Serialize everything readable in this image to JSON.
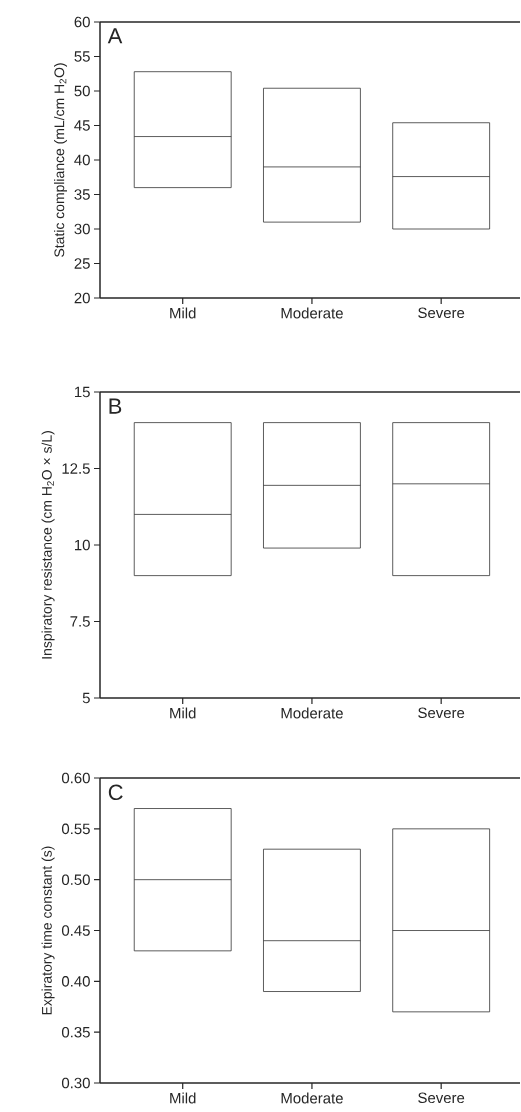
{
  "chart_data": [
    {
      "type": "box",
      "ylabel": "Static compliance (mL/cm H$_{2}$O)",
      "annotations": [
        "A"
      ],
      "categories": [
        "Mild",
        "Moderate",
        "Severe"
      ],
      "color": "#333333",
      "boxes": [
        {
          "low": 36,
          "q1": 36,
          "median": 43.4,
          "q3": 52.8,
          "high": 52.8
        },
        {
          "low": 31,
          "q1": 31,
          "median": 39,
          "q3": 50.4,
          "high": 50.4
        },
        {
          "low": 30,
          "q1": 30,
          "median": 37.6,
          "q3": 45.4,
          "high": 45.4
        }
      ],
      "ylim": [
        20,
        60
      ],
      "yticks": [
        20,
        25,
        30,
        35,
        40,
        45,
        50,
        55,
        60
      ]
    },
    {
      "type": "box",
      "ylabel": "Inspiratory resistance (cm H$_{2}$O × s/L)",
      "annotations": [
        "B"
      ],
      "categories": [
        "Mild",
        "Moderate",
        "Severe"
      ],
      "color": "#333333",
      "boxes": [
        {
          "low": 9,
          "q1": 9,
          "median": 11,
          "q3": 14,
          "high": 14
        },
        {
          "low": 9.9,
          "q1": 9.9,
          "median": 11.95,
          "q3": 14,
          "high": 14
        },
        {
          "low": 9,
          "q1": 9,
          "median": 12,
          "q3": 14,
          "high": 14
        }
      ],
      "ylim": [
        5,
        15
      ],
      "yticks": [
        5,
        7.5,
        10,
        12.5,
        15
      ]
    },
    {
      "type": "box",
      "ylabel": "Expiratory time constant (s)",
      "annotations": [
        "C"
      ],
      "categories": [
        "Mild",
        "Moderate",
        "Severe"
      ],
      "color": "#333333",
      "boxes": [
        {
          "low": 0.43,
          "q1": 0.43,
          "median": 0.5,
          "q3": 0.57,
          "high": 0.57
        },
        {
          "low": 0.39,
          "q1": 0.39,
          "median": 0.44,
          "q3": 0.53,
          "high": 0.53
        },
        {
          "low": 0.37,
          "q1": 0.37,
          "median": 0.45,
          "q3": 0.55,
          "high": 0.55
        }
      ],
      "ylim": [
        0.3,
        0.6
      ],
      "yticks": [
        {
          "value": 0.3,
          "label": "0.30"
        },
        {
          "value": 0.35,
          "label": "0.35"
        },
        {
          "value": 0.4,
          "label": "0.40"
        },
        {
          "value": 0.45,
          "label": "0.45"
        },
        {
          "value": 0.5,
          "label": "0.50"
        },
        {
          "value": 0.55,
          "label": "0.55"
        },
        {
          "value": 0.6,
          "label": "0.60"
        }
      ]
    }
  ]
}
